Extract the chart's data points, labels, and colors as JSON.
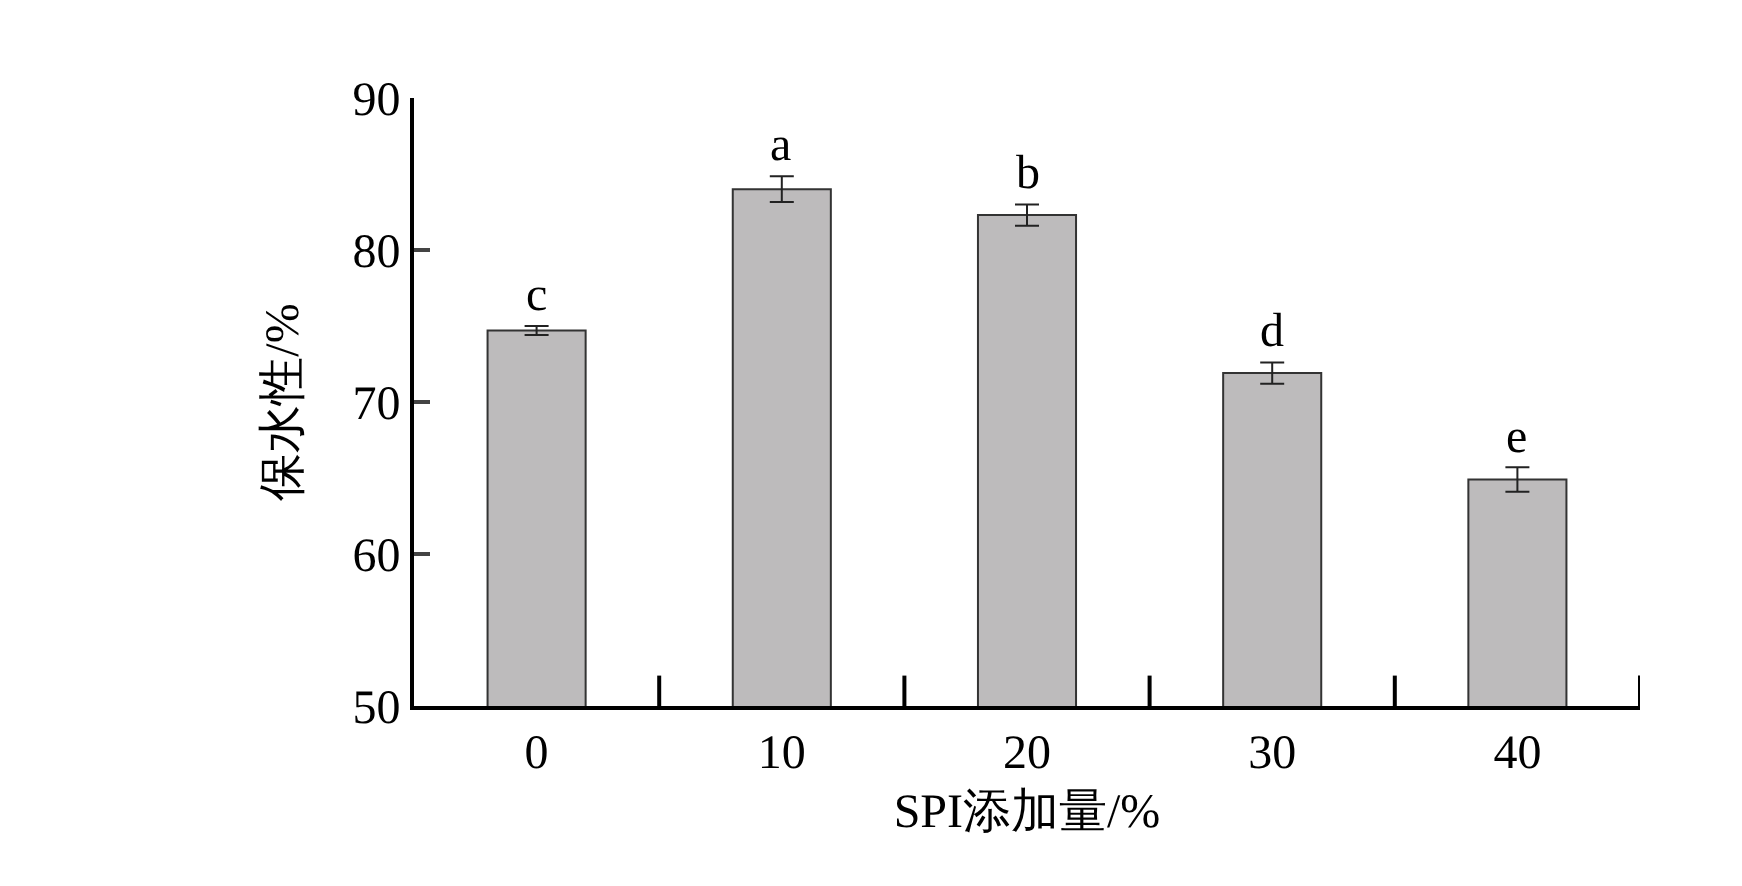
{
  "chart_data": {
    "type": "bar",
    "xlabel": "SPI添加量/%",
    "ylabel": "保水性/%",
    "categories": [
      "0",
      "10",
      "20",
      "30",
      "40"
    ],
    "values": [
      74.7,
      84.0,
      82.3,
      71.9,
      64.9
    ],
    "errors": [
      0.3,
      0.85,
      0.7,
      0.7,
      0.8
    ],
    "color": "#bdbbbc",
    "ylim": [
      50,
      90
    ],
    "yticks": [
      50,
      60,
      70,
      80,
      90
    ],
    "annotations": [
      {
        "text": "c",
        "x": "0",
        "y": 75.0
      },
      {
        "text": "a",
        "x": "10",
        "y": 84.85
      },
      {
        "text": "b",
        "x": "20",
        "y": 83.0
      },
      {
        "text": "d",
        "x": "30",
        "y": 72.6
      },
      {
        "text": "e",
        "x": "40",
        "y": 65.7
      }
    ]
  }
}
